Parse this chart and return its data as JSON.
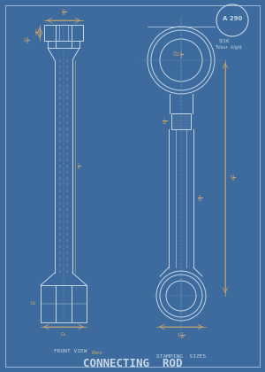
{
  "bg_color": "#3d6b9e",
  "line_color": "#c8d8e8",
  "dim_color": "#d4a96a",
  "text_color": "#c8d8e8",
  "title": "CONNECTING  ROD",
  "subtitle": "STAMPING  SIZES",
  "part_label": "FRONT VIEW",
  "part_note": "Klero",
  "drawing_number": "A 290",
  "tolerance_label": "Tolour  A/g/d",
  "scale_label": "5/16",
  "title_fontsize": 9,
  "sub_fontsize": 5.5,
  "label_fontsize": 4.5,
  "dim_fontsize": 3.8,
  "fig_width": 3.0,
  "fig_height": 4.2,
  "dpi": 100
}
